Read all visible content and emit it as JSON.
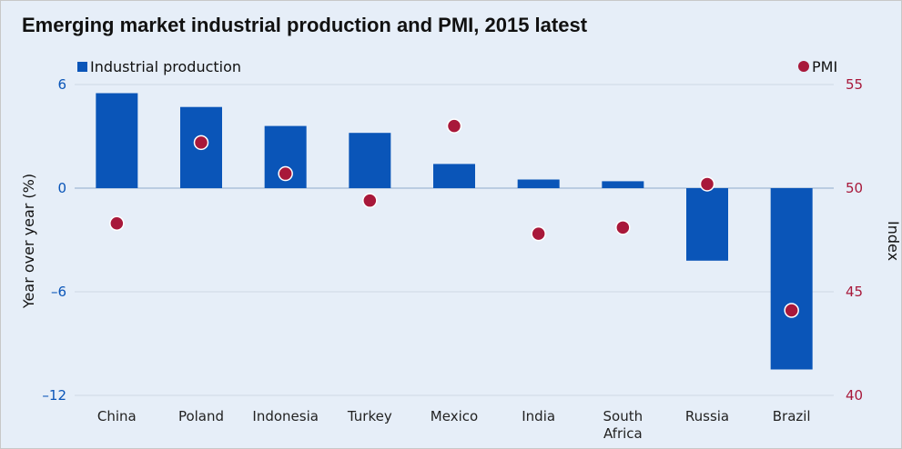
{
  "chart_data": {
    "type": "bar",
    "title": "Emerging market industrial production and PMI, 2015 latest",
    "categories": [
      "China",
      "Poland",
      "Indonesia",
      "Turkey",
      "Mexico",
      "India",
      "South Africa",
      "Russia",
      "Brazil"
    ],
    "series": [
      {
        "name": "Industrial production",
        "type": "bar",
        "axis": "left",
        "values": [
          5.5,
          4.7,
          3.6,
          3.2,
          1.4,
          0.5,
          0.4,
          -4.2,
          -10.5
        ]
      },
      {
        "name": "PMI",
        "type": "scatter",
        "axis": "right",
        "values": [
          48.3,
          52.2,
          50.7,
          49.4,
          53.0,
          47.8,
          48.1,
          50.2,
          44.1
        ]
      }
    ],
    "y_left": {
      "label": "Year over year (%)",
      "ylim": [
        -12,
        6
      ],
      "ticks": [
        6,
        0,
        -6,
        -12
      ],
      "tick_labels": [
        "6",
        "0",
        "–6",
        "–12"
      ]
    },
    "y_right": {
      "label": "Index",
      "ylim": [
        40,
        55
      ],
      "ticks": [
        55,
        50,
        45,
        40
      ],
      "tick_labels": [
        "55",
        "50",
        "45",
        "40"
      ]
    },
    "grid": true,
    "legend": [
      {
        "label": "Industrial production",
        "position": "top-left"
      },
      {
        "label": "PMI",
        "position": "top-right"
      }
    ],
    "colors": {
      "bar": "#0a55b8",
      "dot": "#a8183a",
      "left_axis": "#0a55b8",
      "right_axis": "#a8183a",
      "grid": "#cfd8e3",
      "zero_line": "#8fa9cc"
    }
  }
}
